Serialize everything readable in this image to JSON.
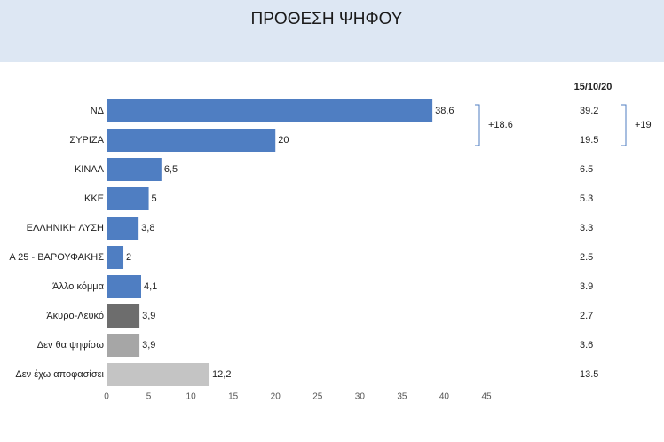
{
  "chart_data": {
    "type": "bar",
    "orientation": "horizontal",
    "title": "ΠΡΟΘΕΣΗ ΨΗΦΟΥ",
    "categories": [
      "ΝΔ",
      "ΣΥΡΙΖΑ",
      "ΚΙΝΑΛ",
      "ΚΚΕ",
      "ΕΛΛΗΝΙΚΗ ΛΥΣΗ",
      "Α 25 - ΒΑΡΟΥΦΑΚΗΣ",
      "Άλλο κόμμα",
      "Άκυρο-Λευκό",
      "Δεν θα ψηφίσω",
      "Δεν έχω αποφασίσει"
    ],
    "values": [
      38.6,
      20,
      6.5,
      5,
      3.8,
      2,
      4.1,
      3.9,
      3.9,
      12.2
    ],
    "value_labels": [
      "38,6",
      "20",
      "6,5",
      "5",
      "3,8",
      "2",
      "4,1",
      "3,9",
      "3,9",
      "12,2"
    ],
    "colors": [
      "#4f7ec2",
      "#4f7ec2",
      "#4f7ec2",
      "#4f7ec2",
      "#4f7ec2",
      "#4f7ec2",
      "#4f7ec2",
      "#6d6d6d",
      "#a6a6a6",
      "#c4c4c4"
    ],
    "xlim": [
      0,
      45
    ],
    "xticks": [
      0,
      5,
      10,
      15,
      20,
      25,
      30,
      35,
      40,
      45
    ],
    "comparison": {
      "title": "15/10/20",
      "values": [
        39.2,
        19.5,
        6.5,
        5.3,
        3.3,
        2.5,
        3.9,
        2.7,
        3.6,
        13.5
      ]
    },
    "annotations": [
      "+18.6",
      "+19"
    ]
  }
}
